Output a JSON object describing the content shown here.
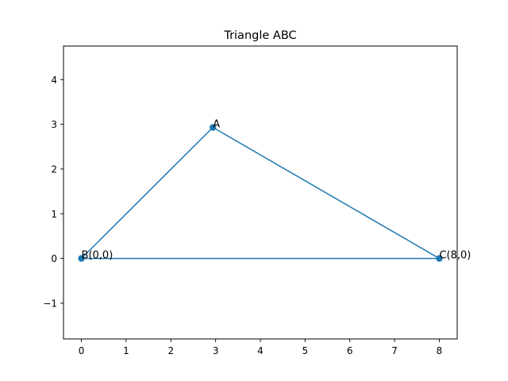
{
  "chart_data": {
    "type": "line",
    "title": "Triangle ABC",
    "xlabel": "",
    "ylabel": "",
    "xlim": [
      -0.4,
      8.4
    ],
    "ylim": [
      -1.8,
      4.75
    ],
    "x_ticks": [
      0,
      1,
      2,
      3,
      4,
      5,
      6,
      7,
      8
    ],
    "x_tick_labels": [
      "0",
      "1",
      "2",
      "3",
      "4",
      "5",
      "6",
      "7",
      "8"
    ],
    "y_ticks": [
      -1,
      0,
      1,
      2,
      3,
      4
    ],
    "y_tick_labels": [
      "−1",
      "0",
      "1",
      "2",
      "3",
      "4"
    ],
    "grid": false,
    "color": "#1f77b4",
    "points": [
      {
        "name": "A",
        "x": 2.94,
        "y": 2.93,
        "label": "A"
      },
      {
        "name": "B",
        "x": 0,
        "y": 0,
        "label": "B(0,0)"
      },
      {
        "name": "C",
        "x": 8,
        "y": 0,
        "label": "C(8,0)"
      }
    ],
    "path_order": [
      "B",
      "A",
      "C",
      "B"
    ]
  }
}
